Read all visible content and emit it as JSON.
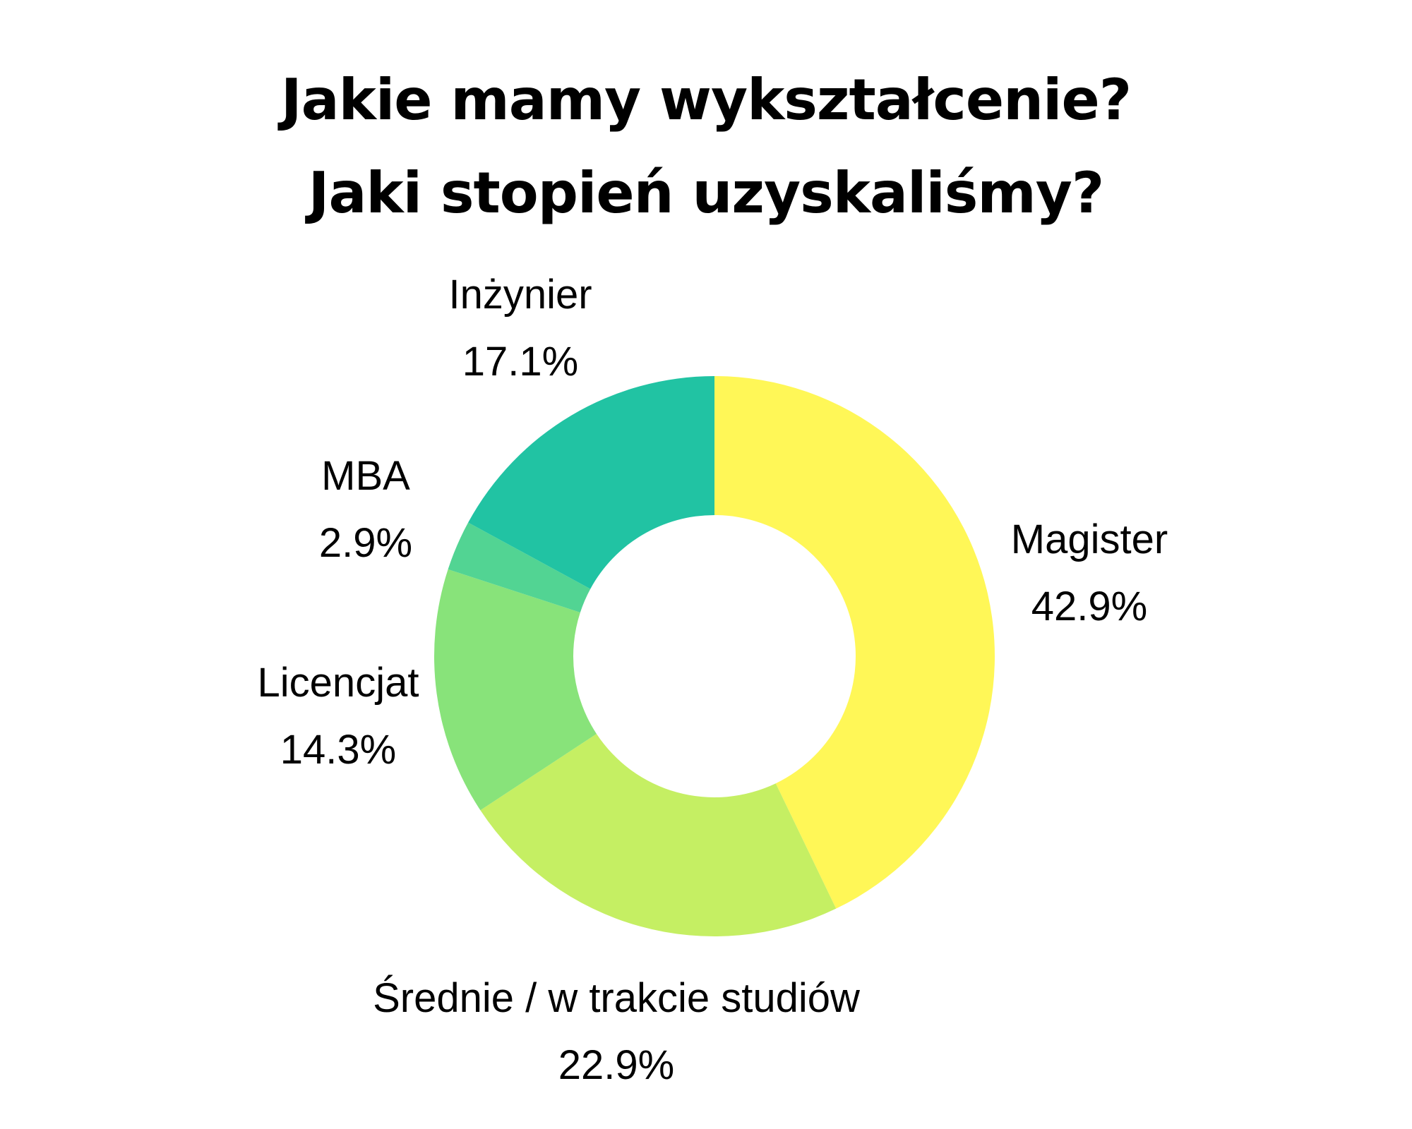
{
  "title_lines": [
    "Jakie mamy wykształcenie?",
    "Jaki stopień uzyskaliśmy?"
  ],
  "chart_data": {
    "type": "pie",
    "donut": true,
    "slices": [
      {
        "label": "Magister",
        "value": 42.9,
        "display": "42.9%",
        "color": "#fff757"
      },
      {
        "label": "Średnie / w trakcie studiów",
        "value": 22.9,
        "display": "22.9%",
        "color": "#c5ef63"
      },
      {
        "label": "Licencjat",
        "value": 14.3,
        "display": "14.3%",
        "color": "#88e37a"
      },
      {
        "label": "MBA",
        "value": 2.9,
        "display": "2.9%",
        "color": "#52d493"
      },
      {
        "label": "Inżynier",
        "value": 17.1,
        "display": "17.1%",
        "color": "#21c3a3"
      }
    ],
    "start": "top",
    "direction": "clockwise",
    "legend": "none"
  }
}
